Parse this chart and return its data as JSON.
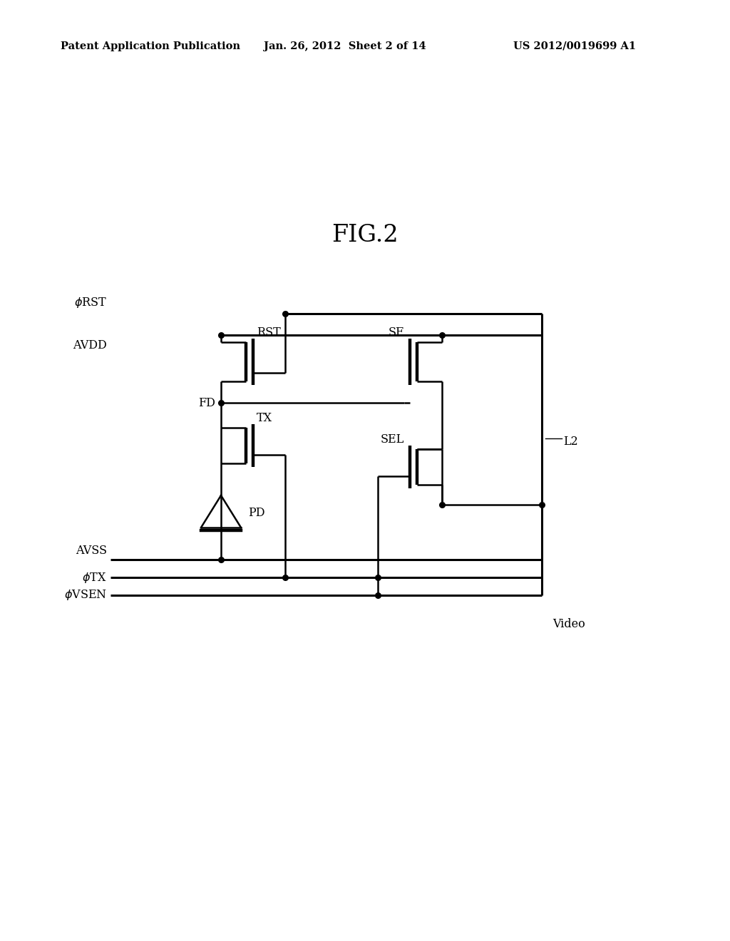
{
  "title": "FIG.2",
  "header_left": "Patent Application Publication",
  "header_center": "Jan. 26, 2012  Sheet 2 of 14",
  "header_right": "US 2012/0019699 A1",
  "bg_color": "#ffffff",
  "line_color": "#000000",
  "lw": 1.8,
  "lw_thick": 2.2,
  "dot_r": 5.5,
  "fs_header": 10.5,
  "fs_title": 24,
  "fs_label": 11.5
}
